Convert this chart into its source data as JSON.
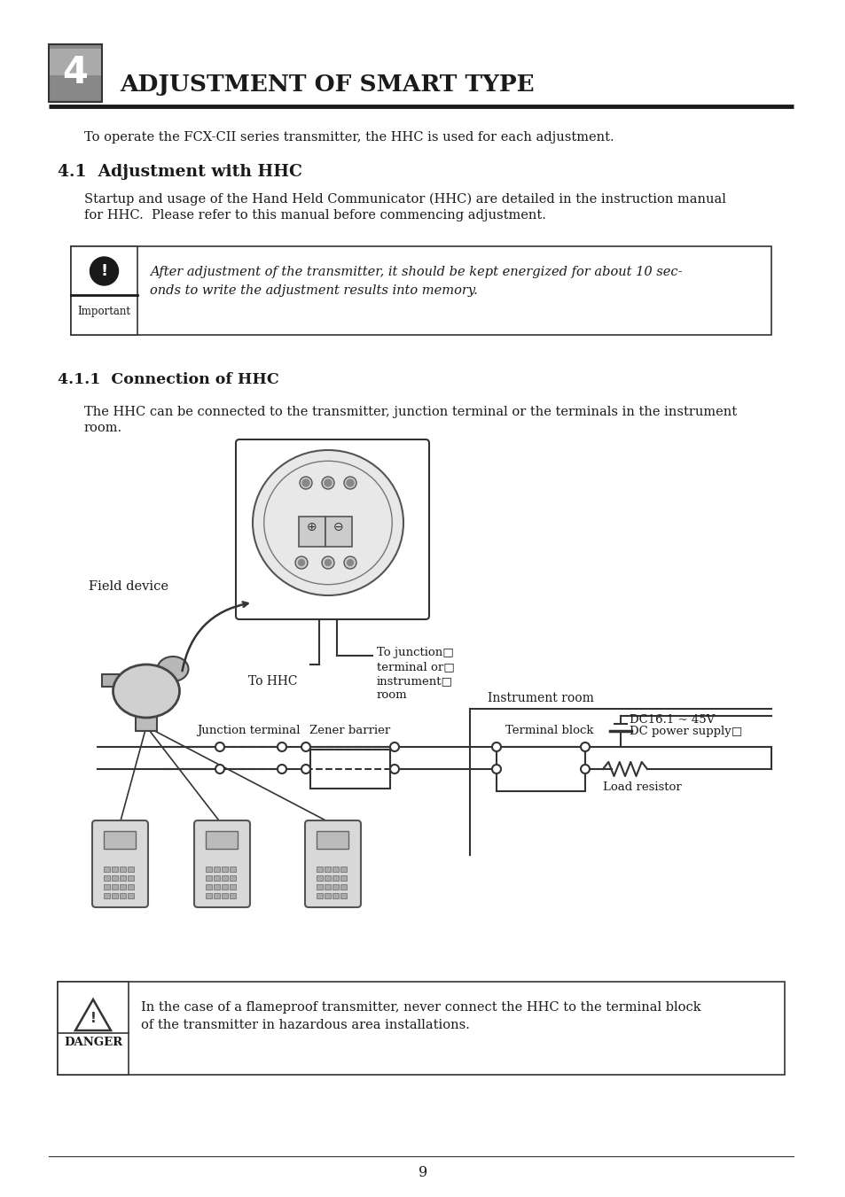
{
  "title": "ADJUSTMENT OF SMART TYPE",
  "chapter_num": "4",
  "section_41": "4.1  Adjustment with HHC",
  "section_411": "4.1.1  Connection of HHC",
  "intro_text": "To operate the FCX-CII series transmitter, the HHC is used for each adjustment.",
  "body_41_1": "Startup and usage of the Hand Held Communicator (HHC) are detailed in the instruction manual",
  "body_41_2": "for HHC.  Please refer to this manual before commencing adjustment.",
  "important_text_1": "After adjustment of the transmitter, it should be kept energized for about 10 sec-",
  "important_text_2": "onds to write the adjustment results into memory.",
  "connection_intro_1": "The HHC can be connected to the transmitter, junction terminal or the terminals in the instrument",
  "connection_intro_2": "room.",
  "label_field_device": "Field device",
  "label_to_hhc": "To HHC",
  "label_junction_box": "To junction□\nterminal or□\ninstrument□\nroom",
  "label_instrument_room": "Instrument room",
  "label_junction_terminal": "Junction terminal",
  "label_zener_barrier": "Zener barrier",
  "label_terminal_block": "Terminal block",
  "label_dc_power_1": "DC power supply□",
  "label_dc_power_2": "DC16.1 ~ 45V",
  "label_load_resistor": "Load resistor",
  "danger_text_1": "In the case of a flameproof transmitter, never connect the HHC to the terminal block",
  "danger_text_2": "of the transmitter in hazardous area installations.",
  "important_label": "Important",
  "page_num": "9",
  "bg_color": "#ffffff",
  "text_color": "#000000"
}
